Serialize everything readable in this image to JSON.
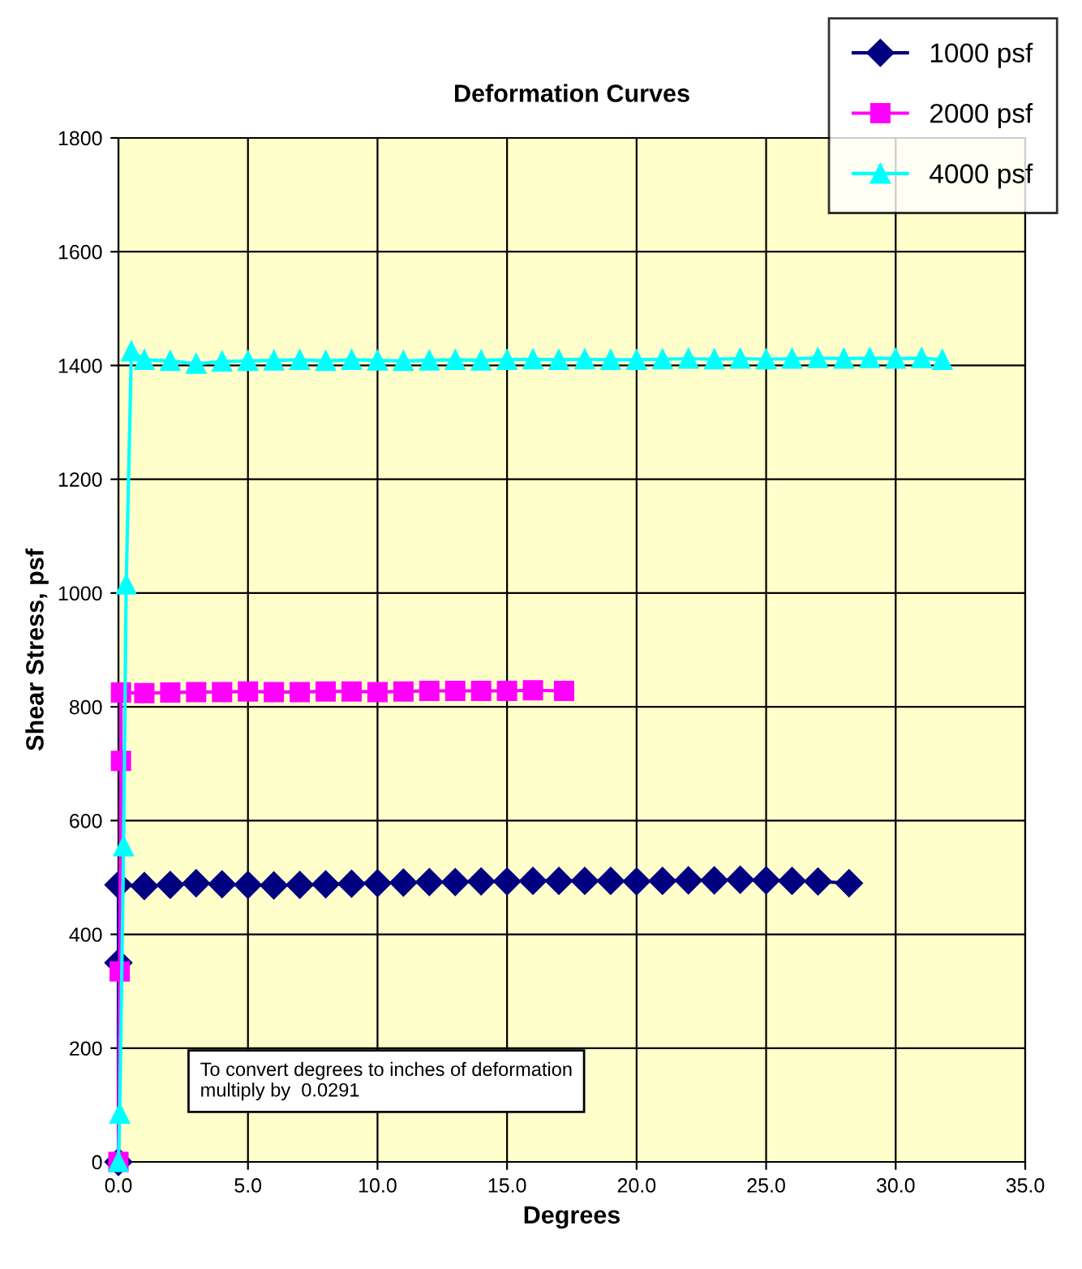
{
  "chart_data": {
    "type": "line",
    "title": "Deformation Curves",
    "xlabel": "Degrees",
    "ylabel": "Shear Stress, psf",
    "xlim": [
      0,
      35
    ],
    "xticks": [
      {
        "value": 0,
        "label": "0.0"
      },
      {
        "value": 5,
        "label": "5.0"
      },
      {
        "value": 10,
        "label": "10.0"
      },
      {
        "value": 15,
        "label": "15.0"
      },
      {
        "value": 20,
        "label": "20.0"
      },
      {
        "value": 25,
        "label": "25.0"
      },
      {
        "value": 30,
        "label": "30.0"
      },
      {
        "value": 35,
        "label": "35.0"
      }
    ],
    "ylim": [
      0,
      1800
    ],
    "yticks": [
      0,
      200,
      400,
      600,
      800,
      1000,
      1200,
      1600,
      1800,
      1400
    ],
    "grid": true,
    "legend": "top right",
    "series": [
      {
        "name": "1000 psf",
        "color": "#000080",
        "marker": "diamond",
        "x": [
          0,
          0,
          0,
          1,
          2,
          3,
          4,
          5,
          6,
          7,
          8,
          9,
          10,
          11,
          12,
          13,
          14,
          15,
          16,
          17,
          18,
          19,
          20,
          21,
          22,
          23,
          24,
          25,
          26,
          27,
          28.2
        ],
        "values": [
          0,
          350,
          487,
          485,
          487,
          490,
          488,
          487,
          486,
          487,
          488,
          489,
          490,
          491,
          492,
          492,
          493,
          493,
          494,
          494,
          494,
          494,
          493,
          494,
          495,
          495,
          496,
          495,
          494,
          493,
          490
        ]
      },
      {
        "name": "2000 psf",
        "color": "#ff00ff",
        "marker": "square",
        "x": [
          0,
          0.05,
          0.1,
          0.1,
          1,
          2,
          3,
          4,
          5,
          6,
          7,
          8,
          9,
          10,
          11,
          12,
          13,
          14,
          15,
          16,
          17.2
        ],
        "values": [
          0,
          335,
          705,
          825,
          824,
          825,
          826,
          826,
          827,
          826,
          826,
          827,
          827,
          826,
          827,
          828,
          828,
          828,
          828,
          829,
          828
        ]
      },
      {
        "name": "4000 psf",
        "color": "#00ffff",
        "marker": "triangle",
        "x": [
          0,
          0.05,
          0.2,
          0.3,
          0.5,
          1,
          2,
          3,
          4,
          5,
          6,
          7,
          8,
          9,
          10,
          11,
          12,
          13,
          14,
          15,
          16,
          17,
          18,
          19,
          20,
          21,
          22,
          23,
          24,
          25,
          26,
          27,
          28,
          29,
          30,
          31,
          31.8
        ],
        "values": [
          0,
          85,
          555,
          1015,
          1425,
          1410,
          1408,
          1403,
          1407,
          1408,
          1409,
          1410,
          1408,
          1410,
          1409,
          1408,
          1409,
          1410,
          1409,
          1410,
          1411,
          1410,
          1411,
          1410,
          1410,
          1411,
          1412,
          1411,
          1412,
          1411,
          1412,
          1413,
          1412,
          1413,
          1412,
          1413,
          1410
        ]
      }
    ],
    "annotations": [
      "To convert degrees to inches of deformation\nmultiply by  0.0291"
    ]
  }
}
